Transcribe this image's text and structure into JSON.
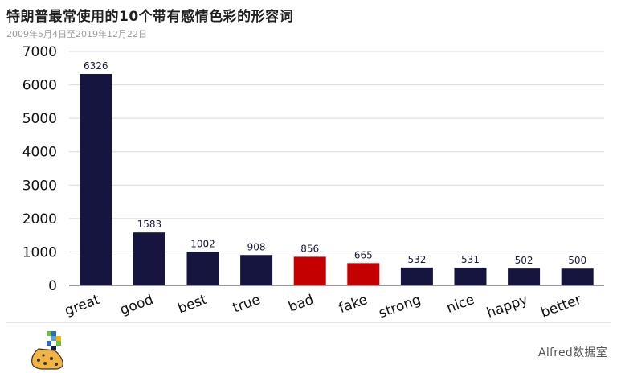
{
  "header": {
    "title": "特朗普最常使用的10个带有感情色彩的形容词",
    "subtitle": "2009年5月4日至2019年12月22日"
  },
  "footer": {
    "brand": "Alfred数据室",
    "logo_icon": "pixel-flask-icon"
  },
  "colors": {
    "default_bar": "#16153f",
    "highlight_bar": "#c40000",
    "grid": "#d9d9d9"
  },
  "chart_data": {
    "type": "bar",
    "title": "特朗普最常使用的10个带有感情色彩的形容词",
    "subtitle": "2009年5月4日至2019年12月22日",
    "categories": [
      "great",
      "good",
      "best",
      "true",
      "bad",
      "fake",
      "strong",
      "nice",
      "happy",
      "better"
    ],
    "values": [
      6326,
      1583,
      1002,
      908,
      856,
      665,
      532,
      531,
      502,
      500
    ],
    "highlight": [
      "bad",
      "fake"
    ],
    "yticks": [
      0,
      1000,
      2000,
      3000,
      4000,
      5000,
      6000,
      7000
    ],
    "ylim": [
      0,
      7000
    ],
    "grid": true,
    "data_labels": true
  }
}
